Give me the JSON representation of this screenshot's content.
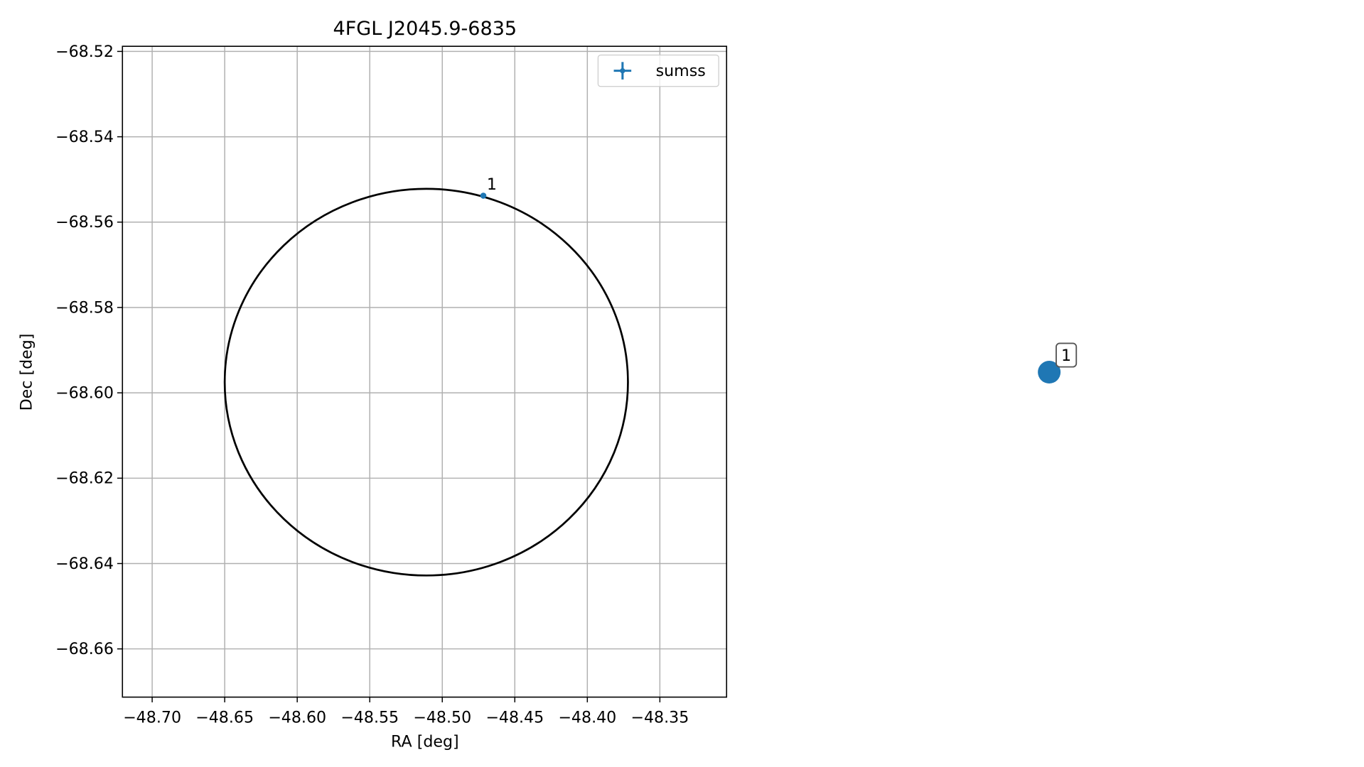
{
  "chart_data": {
    "type": "scatter",
    "title": "4FGL J2045.9-6835",
    "x_label": "RA [deg]",
    "y_label": "Dec [deg]",
    "xlim": [
      -48.7205,
      -48.304
    ],
    "ylim": [
      -68.6713,
      -68.5188
    ],
    "xticks": [
      {
        "value": -48.7,
        "label": "−48.70"
      },
      {
        "value": -48.65,
        "label": "−48.65"
      },
      {
        "value": -48.6,
        "label": "−48.60"
      },
      {
        "value": -48.55,
        "label": "−48.55"
      },
      {
        "value": -48.5,
        "label": "−48.50"
      },
      {
        "value": -48.45,
        "label": "−48.45"
      },
      {
        "value": -48.4,
        "label": "−48.40"
      },
      {
        "value": -48.35,
        "label": "−48.35"
      }
    ],
    "yticks": [
      {
        "value": -68.52,
        "label": "−68.52"
      },
      {
        "value": -68.54,
        "label": "−68.54"
      },
      {
        "value": -68.56,
        "label": "−68.56"
      },
      {
        "value": -68.58,
        "label": "−68.58"
      },
      {
        "value": -68.6,
        "label": "−68.60"
      },
      {
        "value": -68.62,
        "label": "−68.62"
      },
      {
        "value": -68.64,
        "label": "−68.64"
      },
      {
        "value": -68.66,
        "label": "−68.66"
      }
    ],
    "grid": true,
    "legend": "upper right",
    "series": [
      {
        "name": "sumss",
        "color": "#1f77b4",
        "x": [
          -48.4717
        ],
        "values": [
          -68.5538
        ],
        "point_labels": [
          "1"
        ]
      }
    ],
    "circle": {
      "x": -48.511,
      "y": -68.5975,
      "rx": 0.139,
      "ry": 0.0453,
      "color": "#000000"
    }
  },
  "side_marker": {
    "label": "1",
    "color": "#1f77b4"
  }
}
